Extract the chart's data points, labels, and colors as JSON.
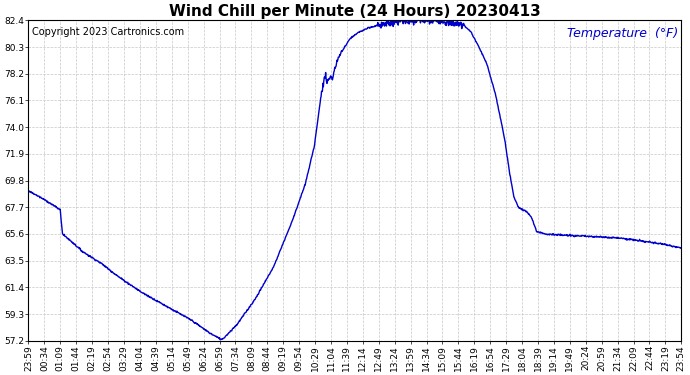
{
  "title": "Wind Chill per Minute (24 Hours) 20230413",
  "copyright_text": "Copyright 2023 Cartronics.com",
  "legend_label": "Temperature  (°F)",
  "line_color": "#0000cc",
  "background_color": "#ffffff",
  "grid_color": "#c8c8c8",
  "ylim": [
    57.2,
    82.4
  ],
  "yticks": [
    57.2,
    59.3,
    61.4,
    63.5,
    65.6,
    67.7,
    69.8,
    71.9,
    74.0,
    76.1,
    78.2,
    80.3,
    82.4
  ],
  "xtick_labels": [
    "23:59",
    "00:34",
    "01:09",
    "01:44",
    "02:19",
    "02:54",
    "03:29",
    "04:04",
    "04:39",
    "05:14",
    "05:49",
    "06:24",
    "06:59",
    "07:34",
    "08:09",
    "08:44",
    "09:19",
    "09:54",
    "10:29",
    "11:04",
    "11:39",
    "12:14",
    "12:49",
    "13:24",
    "13:59",
    "14:34",
    "15:09",
    "15:44",
    "16:19",
    "16:54",
    "17:29",
    "18:04",
    "18:39",
    "19:14",
    "19:49",
    "20:24",
    "20:59",
    "21:34",
    "22:09",
    "22:44",
    "23:19",
    "23:54"
  ],
  "title_fontsize": 11,
  "copyright_fontsize": 7,
  "legend_fontsize": 9,
  "tick_fontsize": 6.5,
  "line_width": 1.0
}
